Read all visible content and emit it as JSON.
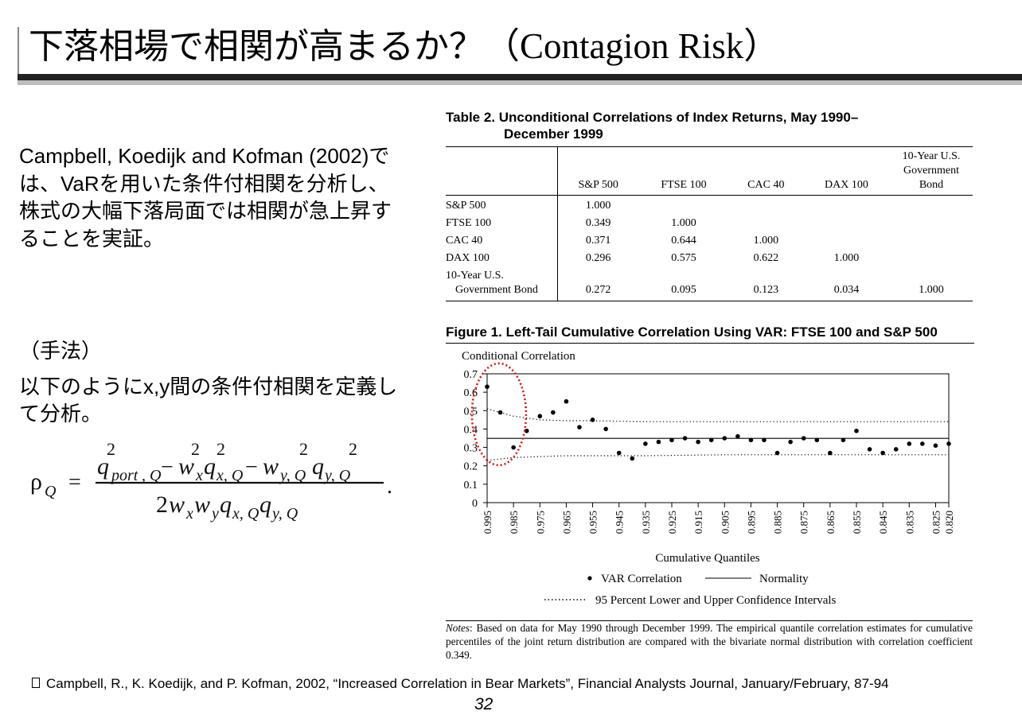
{
  "slide": {
    "title_jp": "下落相場で相関が高まるか？",
    "title_en": "（Contagion Risk）",
    "lead": "Campbell, Koedijk and Kofman (2002)では、VaRを用いた条件付相関を分析し、株式の大幅下落局面では相関が急上昇することを実証。",
    "method_label": "（手法）",
    "method_text": "以下のようにx,y間の条件付相関を定義して分析。",
    "formula": {
      "lhs": "ρ",
      "lhs_sub": "Q",
      "equals": "=",
      "period": "."
    },
    "reference": "Campbell, R., K. Koedijk, and P. Kofman, 2002, “Increased Correlation in Bear Markets”, Financial Analysts Journal, January/February, 87-94",
    "page_number": "32"
  },
  "table": {
    "title_line1": "Table 2. Unconditional Correlations of Index Returns, May 1990–",
    "title_line2": "December 1999",
    "columns": [
      "S&P 500",
      "FTSE 100",
      "CAC 40",
      "DAX 100",
      "10-Year U.S. Government Bond"
    ],
    "rows": [
      {
        "label": "S&P 500",
        "values": [
          "1.000",
          "",
          "",
          "",
          ""
        ]
      },
      {
        "label": "FTSE 100",
        "values": [
          "0.349",
          "1.000",
          "",
          "",
          ""
        ]
      },
      {
        "label": "CAC 40",
        "values": [
          "0.371",
          "0.644",
          "1.000",
          "",
          ""
        ]
      },
      {
        "label": "DAX 100",
        "values": [
          "0.296",
          "0.575",
          "0.622",
          "1.000",
          ""
        ]
      },
      {
        "label": "10-Year U.S.",
        "label2": "Government Bond",
        "values": [
          "0.272",
          "0.095",
          "0.123",
          "0.034",
          "1.000"
        ]
      }
    ]
  },
  "figure": {
    "title": "Figure 1.  Left-Tail Cumulative Correlation Using VAR: FTSE 100 and S&P 500",
    "notes": "Notes: Based on data for May 1990 through December 1999. The empirical quantile correlation estimates for cumulative percentiles of the joint return distribution are compared with the bivariate normal distribution with correlation coefficient 0.349.",
    "notes_label": "Notes",
    "notes_body": ": Based on data for May 1990 through December 1999. The empirical quantile correlation estimates for cumulative percentiles of the joint return distribution are compared with the bivariate normal distribution with correlation coefficient 0.349."
  },
  "chart_data": {
    "type": "scatter",
    "title": "Figure 1.  Left-Tail Cumulative Correlation Using VAR: FTSE 100 and S&P 500",
    "ylabel": "Conditional Correlation",
    "xlabel": "Cumulative Quantiles",
    "ylim": [
      0,
      0.7
    ],
    "yticks": [
      "0",
      "0.1",
      "0.2",
      "0.3",
      "0.4",
      "0.5",
      "0.6",
      "0.7"
    ],
    "x_reversed": true,
    "x_labels": [
      "0.995",
      "0.985",
      "0.975",
      "0.965",
      "0.955",
      "0.945",
      "0.935",
      "0.925",
      "0.915",
      "0.905",
      "0.895",
      "0.885",
      "0.875",
      "0.865",
      "0.855",
      "0.845",
      "0.835",
      "0.825",
      "0.820"
    ],
    "grid": false,
    "legend_placement": "bottom",
    "series": [
      {
        "name": "VAR Correlation",
        "style": "points",
        "x": [
          0.995,
          0.99,
          0.985,
          0.98,
          0.975,
          0.97,
          0.965,
          0.96,
          0.955,
          0.95,
          0.945,
          0.94,
          0.935,
          0.93,
          0.925,
          0.92,
          0.915,
          0.91,
          0.905,
          0.9,
          0.895,
          0.89,
          0.885,
          0.88,
          0.875,
          0.87,
          0.865,
          0.86,
          0.855,
          0.85,
          0.845,
          0.84,
          0.835,
          0.83,
          0.825,
          0.82
        ],
        "y": [
          0.63,
          0.49,
          0.3,
          0.39,
          0.47,
          0.49,
          0.55,
          0.41,
          0.45,
          0.4,
          0.27,
          0.24,
          0.32,
          0.33,
          0.34,
          0.35,
          0.33,
          0.34,
          0.35,
          0.36,
          0.34,
          0.34,
          0.27,
          0.33,
          0.35,
          0.34,
          0.27,
          0.34,
          0.39,
          0.29,
          0.27,
          0.29,
          0.32,
          0.32,
          0.31,
          0.32
        ]
      },
      {
        "name": "Normality",
        "style": "solid",
        "x": [
          0.995,
          0.82
        ],
        "y": [
          0.349,
          0.349
        ]
      },
      {
        "name": "95 Percent Lower and Upper Confidence Intervals",
        "style": "dotted",
        "x": [
          0.995,
          0.985,
          0.975,
          0.965,
          0.955,
          0.935,
          0.905,
          0.875,
          0.845,
          0.82
        ],
        "upper": [
          0.51,
          0.47,
          0.45,
          0.445,
          0.445,
          0.44,
          0.44,
          0.44,
          0.44,
          0.44
        ],
        "lower": [
          0.23,
          0.245,
          0.25,
          0.255,
          0.255,
          0.255,
          0.26,
          0.26,
          0.26,
          0.26
        ]
      }
    ],
    "highlight": "red dotted ellipse around the highest quantiles (0.995–0.985)"
  },
  "colors": {
    "title_bar": "#222222",
    "title_shadow": "#bdbdbd",
    "highlight": "#e01010"
  }
}
